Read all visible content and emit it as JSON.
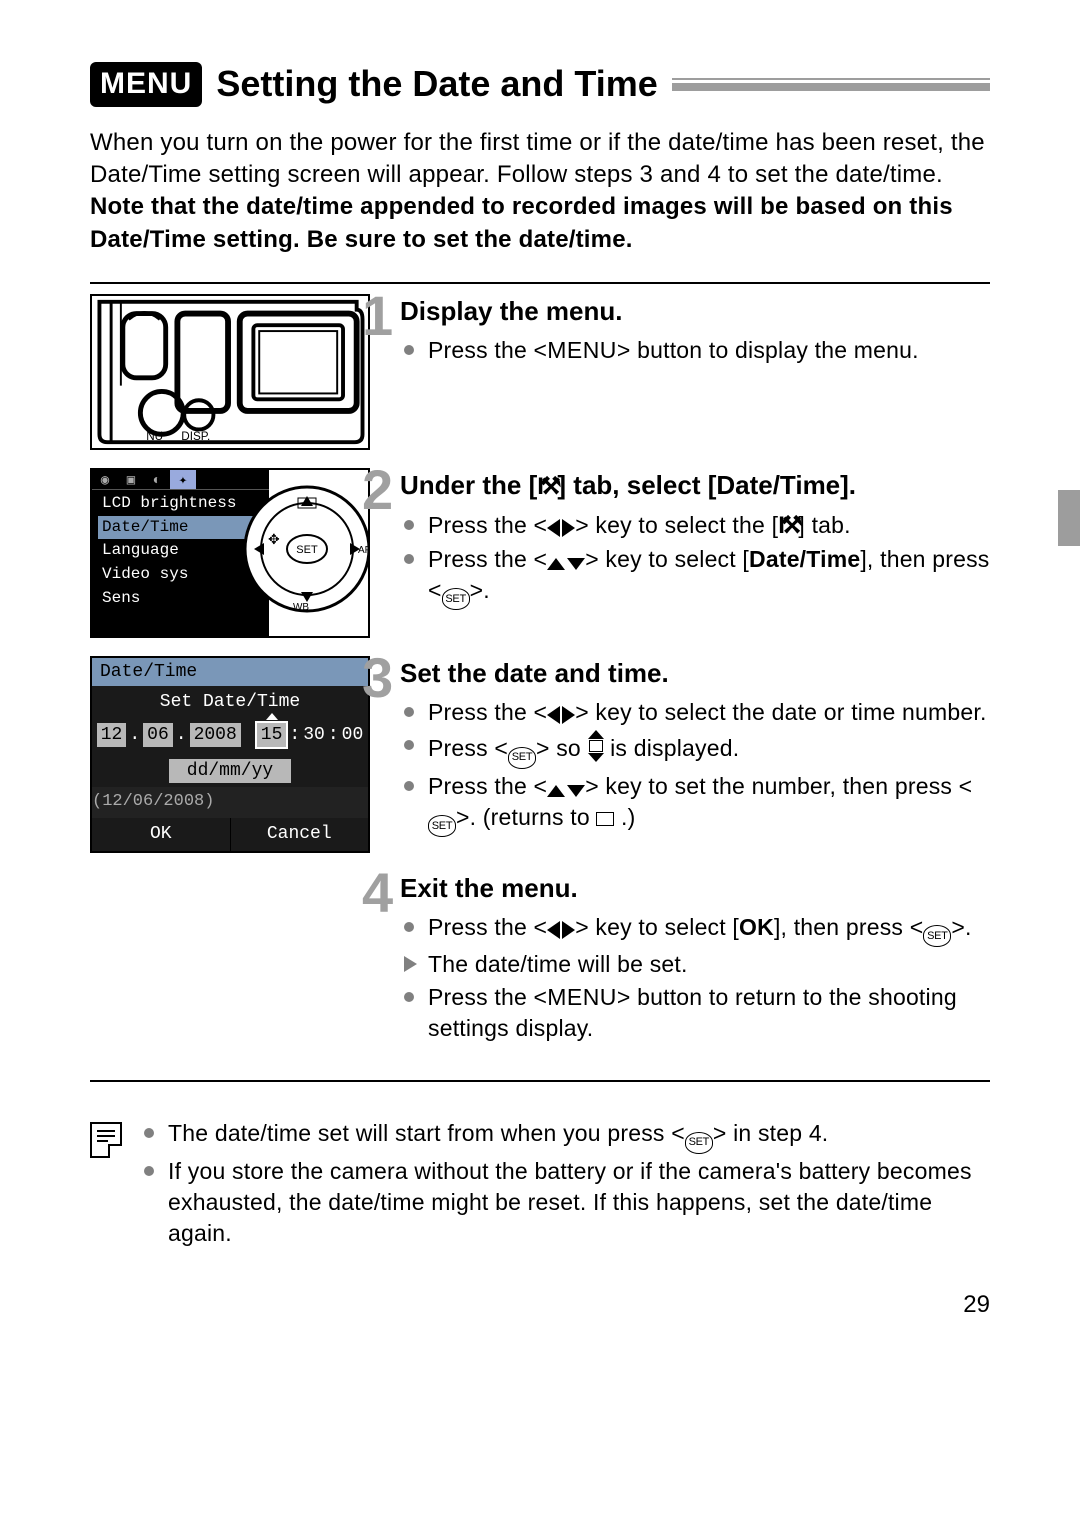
{
  "page_number": "29",
  "heading": {
    "badge": "MENU",
    "title": "Setting the Date and Time"
  },
  "intro": {
    "plain": "When you turn on the power for the first time or if the date/time has been reset, the Date/Time setting screen will appear. Follow steps 3 and 4 to set the date/time. ",
    "bold": "Note that the date/time appended to recorded images will be based on this Date/Time setting. Be sure to set the date/time."
  },
  "illus_camera_labels": {
    "left": "NU",
    "right": "DISP."
  },
  "menu_illus": {
    "items": [
      "LCD brightness",
      "Date/Time",
      "Language",
      "Video sys",
      "Sens"
    ],
    "highlight_index": 1,
    "dial_labels": {
      "set": "SET",
      "af": "AF",
      "wb": "WB"
    }
  },
  "dialog": {
    "title": "Date/Time",
    "subtitle": "Set Date/Time",
    "fields": {
      "dd": "12",
      "mm": "06",
      "yyyy": "2008",
      "hh": "15",
      "mi": "30",
      "ss": "00"
    },
    "format": "dd/mm/yy",
    "preview": "(12/06/2008)",
    "ok": "OK",
    "cancel": "Cancel"
  },
  "glyph_menu": "MENU",
  "glyph_set": "SET",
  "steps": [
    {
      "num": "1",
      "title": "Display the menu.",
      "items": [
        {
          "kind": "dot",
          "frags": [
            {
              "t": "Press the <"
            },
            {
              "g": "menu"
            },
            {
              "t": "> button to display the menu."
            }
          ]
        }
      ]
    },
    {
      "num": "2",
      "title_frags": [
        {
          "t": "Under the ["
        },
        {
          "g": "wrench"
        },
        {
          "t": "] tab, select [Date/Time]."
        }
      ],
      "items": [
        {
          "kind": "dot",
          "frags": [
            {
              "t": "Press the <"
            },
            {
              "g": "lr"
            },
            {
              "t": "> key to select the ["
            },
            {
              "g": "wrench"
            },
            {
              "t": "] tab."
            }
          ]
        },
        {
          "kind": "dot",
          "frags": [
            {
              "t": "Press the <"
            },
            {
              "g": "ud"
            },
            {
              "t": "> key to select ["
            },
            {
              "b": "Date/Time"
            },
            {
              "t": "], then press <"
            },
            {
              "g": "set"
            },
            {
              "t": ">."
            }
          ]
        }
      ]
    },
    {
      "num": "3",
      "title": "Set the date and time.",
      "items": [
        {
          "kind": "dot",
          "frags": [
            {
              "t": "Press the <"
            },
            {
              "g": "lr"
            },
            {
              "t": "> key to select the date or time number."
            }
          ]
        },
        {
          "kind": "dot",
          "frags": [
            {
              "t": "Press <"
            },
            {
              "g": "set"
            },
            {
              "t": "> so "
            },
            {
              "g": "udbox"
            },
            {
              "t": " is displayed."
            }
          ]
        },
        {
          "kind": "dot",
          "frags": [
            {
              "t": "Press the <"
            },
            {
              "g": "ud"
            },
            {
              "t": "> key to set the number, then press <"
            },
            {
              "g": "set"
            },
            {
              "t": ">. (returns to "
            },
            {
              "g": "sq"
            },
            {
              "t": " .)"
            }
          ]
        }
      ]
    },
    {
      "num": "4",
      "title": "Exit the menu.",
      "items": [
        {
          "kind": "dot",
          "frags": [
            {
              "t": "Press the <"
            },
            {
              "g": "lr"
            },
            {
              "t": "> key to select ["
            },
            {
              "b": "OK"
            },
            {
              "t": "], then press <"
            },
            {
              "g": "set"
            },
            {
              "t": ">."
            }
          ]
        },
        {
          "kind": "arrow",
          "frags": [
            {
              "t": "The date/time will be set."
            }
          ]
        },
        {
          "kind": "dot",
          "frags": [
            {
              "t": "Press the <"
            },
            {
              "g": "menu"
            },
            {
              "t": "> button to return to the shooting settings display."
            }
          ]
        }
      ]
    }
  ],
  "notes": [
    {
      "frags": [
        {
          "t": "The date/time set will start from when you press <"
        },
        {
          "g": "set"
        },
        {
          "t": "> in step 4."
        }
      ]
    },
    {
      "frags": [
        {
          "t": "If you store the camera without the battery or if the camera's battery becomes exhausted, the date/time might be reset. If this happens, set the date/time again."
        }
      ]
    }
  ],
  "colors": {
    "accent_gray": "#9d9d9d",
    "stepnum_gray": "#a0a0a0",
    "bullet_gray": "#808080",
    "menu_highlight": "#7a97b8"
  }
}
